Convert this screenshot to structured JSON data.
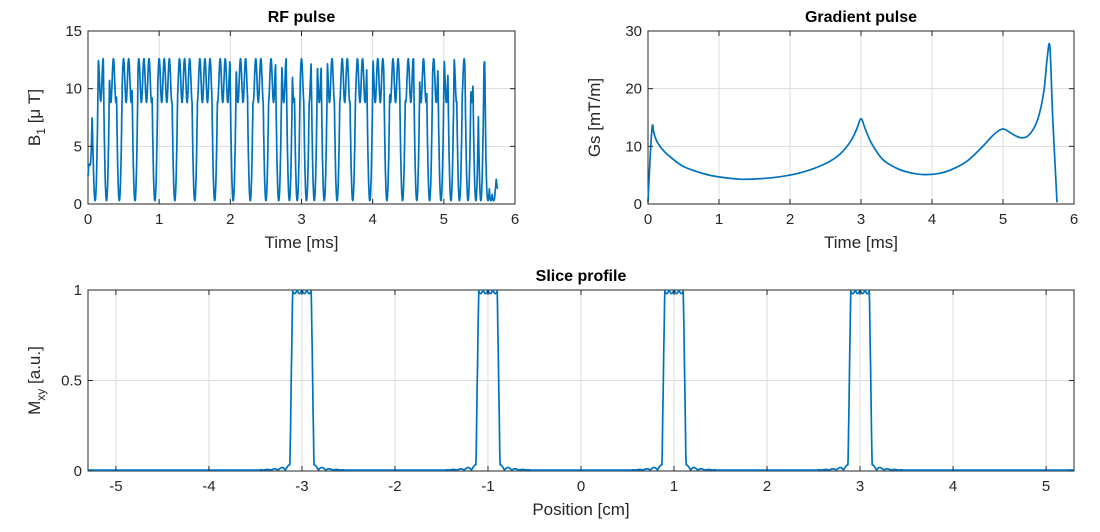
{
  "chart_data": [
    {
      "id": "rf",
      "type": "line",
      "title": "RF pulse",
      "xlabel": "Time [ms]",
      "ylabel": "B",
      "ylabel_sub": "1",
      "ylabel_suffix": " [μ T]",
      "xlim": [
        0,
        6
      ],
      "ylim": [
        0,
        15
      ],
      "xticks": [
        0,
        1,
        2,
        3,
        4,
        5,
        6
      ],
      "yticks": [
        0,
        5,
        10,
        15
      ],
      "grid": true,
      "color": "#0072BD",
      "series": [
        {
          "description_free": true,
          "x_start": 0,
          "x_end": 5.76,
          "envelope": [
            [
              0,
              2.4
            ],
            [
              0.04,
              7
            ],
            [
              0.08,
              11
            ],
            [
              0.15,
              12.6
            ],
            [
              5.5,
              12.6
            ],
            [
              5.58,
              12.3
            ],
            [
              5.6,
              8.5
            ],
            [
              5.68,
              3.5
            ],
            [
              5.72,
              4
            ],
            [
              5.76,
              2.2
            ]
          ],
          "lower_band": [
            [
              0.08,
              9
            ],
            [
              0.3,
              8.8
            ],
            [
              5.55,
              8.8
            ]
          ],
          "null_positions": [
            0.1,
            0.26,
            0.44,
            0.66,
            0.94,
            1.22,
            1.5,
            1.78,
            2.04,
            2.28,
            2.5,
            2.68,
            2.83,
            2.94,
            3.07,
            3.18,
            3.32,
            3.5,
            3.72,
            3.96,
            4.2,
            4.42,
            4.62,
            4.8,
            4.96,
            5.1,
            5.22,
            5.34,
            5.45,
            5.52,
            5.62,
            5.66,
            5.7
          ]
        }
      ]
    },
    {
      "id": "grad",
      "type": "line",
      "title": "Gradient pulse",
      "xlabel": "Time [ms]",
      "ylabel": "Gs [mT/m]",
      "xlim": [
        0,
        6
      ],
      "ylim": [
        0,
        30
      ],
      "xticks": [
        0,
        1,
        2,
        3,
        4,
        5,
        6
      ],
      "yticks": [
        0,
        10,
        20,
        30
      ],
      "grid": true,
      "color": "#0072BD",
      "series": [
        {
          "x": [
            0,
            0.03,
            0.06,
            0.08,
            0.12,
            0.2,
            0.3,
            0.5,
            0.8,
            1.0,
            1.3,
            1.6,
            1.9,
            2.2,
            2.5,
            2.7,
            2.85,
            2.94,
            3.0,
            3.06,
            3.15,
            3.3,
            3.5,
            3.7,
            3.9,
            4.1,
            4.3,
            4.5,
            4.7,
            4.85,
            4.95,
            5.0,
            5.05,
            5.15,
            5.25,
            5.35,
            5.45,
            5.52,
            5.58,
            5.62,
            5.66,
            5.7,
            5.76
          ],
          "y": [
            0.3,
            8,
            13.5,
            12.5,
            11,
            9.5,
            8.3,
            6.5,
            5.2,
            4.7,
            4.3,
            4.4,
            4.8,
            5.6,
            7.0,
            8.6,
            10.8,
            13.0,
            14.8,
            13.0,
            10.5,
            7.8,
            6.2,
            5.4,
            5.1,
            5.3,
            6.1,
            7.5,
            9.8,
            11.8,
            12.8,
            13.0,
            12.8,
            12.0,
            11.5,
            11.8,
            13.5,
            16,
            20,
            25,
            27.3,
            15,
            0.3
          ]
        }
      ]
    },
    {
      "id": "slice",
      "type": "line",
      "title": "Slice profile",
      "xlabel": "Position [cm]",
      "ylabel": "M",
      "ylabel_sub": "xy",
      "ylabel_suffix": " [a.u.]",
      "xlim": [
        -5.3,
        5.3
      ],
      "ylim": [
        0,
        1
      ],
      "xticks": [
        -5,
        -4,
        -3,
        -2,
        -1,
        0,
        1,
        2,
        3,
        4,
        5
      ],
      "yticks": [
        0,
        0.5,
        1
      ],
      "grid": true,
      "color": "#0072BD",
      "series": [
        {
          "slice_centers": [
            -3,
            -1,
            1,
            3
          ],
          "slice_width": 0.2,
          "peak": 1,
          "baseline": 0.005
        }
      ]
    }
  ]
}
